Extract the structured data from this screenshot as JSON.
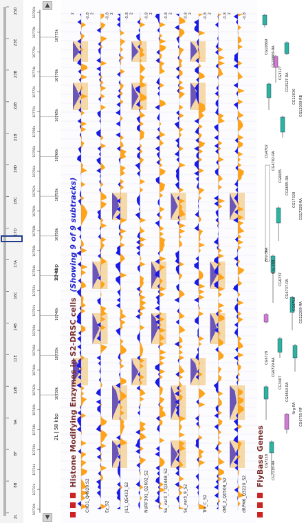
{
  "colors": {
    "pos": "#ffa319",
    "neg": "#1a1ae6",
    "dark": "#5c47b8",
    "peak": "#f5d29a",
    "title": "#7a2f2f",
    "subtitle": "#2222cc",
    "gene": "#2bb5a0",
    "gene_alt": "#d27bd2"
  },
  "chrom": {
    "label": "2L",
    "size_label": "2L | 58 kbp",
    "band_ticks": [
      "2L",
      "8B",
      "8F",
      "9A",
      "12B",
      "12E",
      "14B",
      "16C",
      "17A",
      "17D",
      "18C",
      "19D",
      "21B",
      "22B",
      "23B",
      "23E",
      "25D"
    ]
  },
  "ruler": {
    "scale_label": "20 kbp",
    "coords": [
      "10730k",
      "10735k",
      "10740k",
      "10745k",
      "10750k",
      "10755k",
      "10760k",
      "10765k",
      "10770k",
      "10775k"
    ],
    "small_labels": [
      "10730k",
      "10732k",
      "10734k",
      "10736k",
      "10738k",
      "10740k",
      "10742k",
      "10744k",
      "10746k",
      "10748k",
      "10750k",
      "10752k",
      "10754k",
      "10756k",
      "10758k",
      "10760k",
      "10762k",
      "10764k",
      "10766k",
      "10768k",
      "10770k",
      "10772k",
      "10774k",
      "10776k",
      "10778k",
      "10780k"
    ]
  },
  "track_group": {
    "title": "Histone Modifying Enzymes in S2-DRSC cells",
    "subtitle": "(Showing 9 of 9 subtracks)",
    "tracks": [
      {
        "label": "CHD1_Q4920.S2",
        "max": "2",
        "min": "-0.8"
      },
      {
        "label": "Ez_S2",
        "max": "2",
        "min": "-0.8"
      },
      {
        "label": "JIL1_Q5433_S2",
        "max": "2",
        "min": "-0.8"
      },
      {
        "label": "NURF301_Q2602_S2",
        "max": "2",
        "min": "-0.8"
      },
      {
        "label": "Su_var3_7_Q3448_S2",
        "max": "2",
        "min": "-0.8"
      },
      {
        "label": "Su_var3_9_S2",
        "max": "2",
        "min": "-0.8"
      },
      {
        "label": "Trx_C_S2",
        "max": "2",
        "min": "-0.8"
      },
      {
        "label": "dMi_2_Q0508_S2",
        "max": "2",
        "min": "-0.8"
      },
      {
        "label": "dRPM6_Q3220_S2",
        "max": "2",
        "min": "-0.8"
      }
    ]
  },
  "flybase": {
    "title": "FlyBase Genes",
    "genes": [
      "CG10869",
      "CG10869-RA",
      "CG3127",
      "CG3127-RA",
      "CG12030",
      "CG12030-RB",
      "CG4702",
      "CG4702-RA",
      "CG6685",
      "CG6695-RA",
      "CG17328",
      "CG17328-RA",
      "Bru-3RA",
      "Bru-3RB",
      "CG6737",
      "CG6737-RA",
      "CG6753",
      "CG12209-RA",
      "CG6729",
      "CG6729-RA",
      "CG3407",
      "CG4863-RA",
      "Nrg-RA",
      "CG6755-RF",
      "CG7118",
      "CG7118-RA"
    ]
  }
}
